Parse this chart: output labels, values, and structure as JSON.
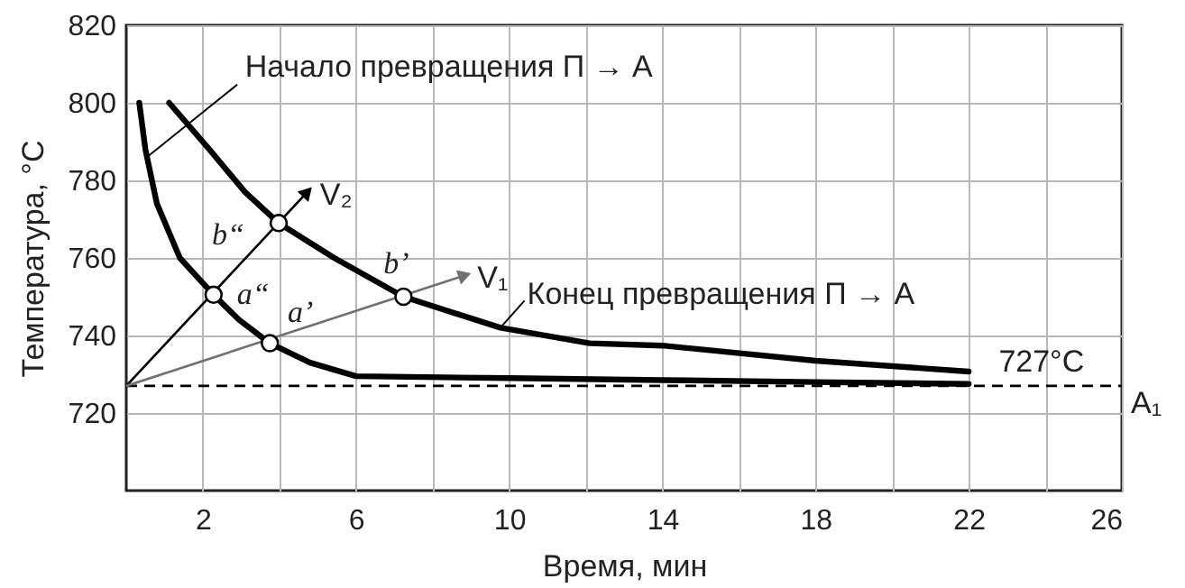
{
  "chart_data": {
    "type": "line",
    "xlabel": "Время, мин",
    "ylabel": "Температура, °С",
    "xlim": [
      0,
      26
    ],
    "ylim": [
      700,
      820
    ],
    "xticks": [
      2,
      {
        "value": 4,
        "label": null
      },
      6,
      {
        "value": 8,
        "label": null
      },
      10,
      {
        "value": 12,
        "label": null
      },
      14,
      {
        "value": 16,
        "label": null
      },
      18,
      {
        "value": 20,
        "label": null
      },
      22,
      {
        "value": 24,
        "label": null
      },
      26
    ],
    "yticks": [
      720,
      740,
      760,
      780,
      800,
      820
    ],
    "grid": true,
    "series": [
      {
        "name": "Начало превращения П → А",
        "color": "#000000",
        "x": [
          0.34,
          0.5,
          0.8,
          1.4,
          2.28,
          2.95,
          3.75,
          4.8,
          6,
          10,
          14,
          18,
          22
        ],
        "values": [
          800,
          788,
          774,
          760,
          750.5,
          744,
          738,
          733,
          729.5,
          729,
          728.5,
          728,
          727.5
        ]
      },
      {
        "name": "Конец превращения П → А",
        "color": "#000000",
        "x": [
          1.12,
          2.17,
          3.1,
          3.98,
          5.43,
          7.24,
          9.77,
          12.1,
          14,
          18,
          22
        ],
        "values": [
          800,
          788,
          777,
          769,
          760,
          750,
          742,
          738,
          737.4,
          733.5,
          730.7
        ]
      },
      {
        "name": "V₂",
        "color": "#000000",
        "x": [
          0,
          4.73
        ],
        "values": [
          727,
          777
        ]
      },
      {
        "name": "V₁",
        "color": "#707070",
        "x": [
          0,
          8.84
        ],
        "values": [
          727,
          755.5
        ]
      },
      {
        "type": "scatter",
        "color": "#ffffff",
        "x": [
          2.28,
          3.98,
          3.75,
          7.24
        ],
        "values": [
          750.5,
          769,
          738,
          750
        ]
      }
    ],
    "ref_lines": [
      {
        "axis": "y",
        "value": 727,
        "label": "A₁",
        "line_style": "dashed",
        "color": "#000000"
      }
    ],
    "annotations": [
      {
        "text": "a“",
        "x": 2.28,
        "y": 750.5
      },
      {
        "text": "b“",
        "x": 3.98,
        "y": 769
      },
      {
        "text": "a’",
        "x": 3.75,
        "y": 738
      },
      {
        "text": "b’",
        "x": 7.24,
        "y": 750
      },
      {
        "text": "727°C",
        "x": 23.9,
        "y": 727
      }
    ]
  }
}
